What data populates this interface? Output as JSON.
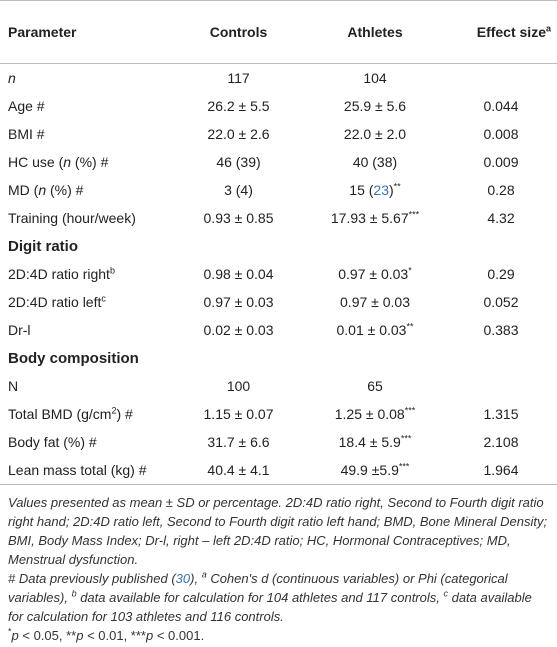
{
  "table": {
    "header": [
      "Parameter",
      "Controls",
      "Athletes",
      [
        "Effect size",
        "a"
      ]
    ],
    "rows": [
      [
        [
          "n"
        ],
        "117",
        "104"
      ],
      [
        "Age #",
        "26.2 ± 5.5",
        "25.9 ± 5.6",
        "0.044"
      ],
      [
        "BMI #",
        "22.0 ± 2.6",
        "22.0 ± 2.0",
        "0.008"
      ],
      [
        [
          "HC use (",
          "n",
          " (%) #"
        ],
        "46 (39)",
        "40 (38)",
        "0.009"
      ],
      [
        [
          "MD (",
          "n",
          " (%) #"
        ],
        "3 (4)",
        [
          "15 (",
          "23",
          ")",
          "**"
        ],
        "0.28"
      ],
      [
        "Training (hour/week)",
        "0.93 ± 0.85",
        [
          "17.93 ± 5.67",
          "***"
        ],
        "4.32"
      ]
    ],
    "sections": [
      {
        "title": "Digit ratio",
        "rows": [
          [
            [
              "2D:4D ratio right",
              "b"
            ],
            "0.98 ± 0.04",
            [
              "0.97 ± 0.03",
              "*"
            ],
            "0.29"
          ],
          [
            [
              "2D:4D ratio left",
              "c"
            ],
            "0.97 ± 0.03",
            "0.97 ± 0.03",
            "0.052"
          ],
          [
            "Dr-l",
            "0.02 ± 0.03",
            [
              "0.01 ± 0.03",
              "**"
            ],
            "0.383"
          ]
        ]
      },
      {
        "title": "Body composition",
        "rows": [
          [
            "N",
            "100",
            "65"
          ],
          [
            [
              "Total BMD (g/cm",
              "2",
              ") #"
            ],
            "1.15 ± 0.07",
            [
              "1.25 ± 0.08",
              "***"
            ],
            "1.315"
          ],
          [
            "Body fat (%) #",
            "31.7 ± 6.6",
            [
              "18.4 ± 5.9",
              "***"
            ],
            "2.108"
          ],
          [
            "Lean mass total (kg) #",
            "40.4 ± 4.1",
            [
              "49.9 ±5.9",
              "***"
            ],
            "1.964"
          ]
        ]
      }
    ]
  },
  "footnotes": [
    "Values presented as mean ± SD or percentage. 2D:4D ratio right, Second to Fourth digit ratio right hand; 2D:4D ratio left, Second to Fourth digit ratio left hand; BMD, Bone Mineral Density; BMI, Body Mass Index; Dr-l, right – left 2D:4D ratio; HC, Hormonal Contraceptives; MD, Menstrual dysfunction.",
    [
      "# Data previously published (",
      "30",
      "), ",
      "a",
      " Cohen's d (continuous variables) or Phi (categorical variables), ",
      "b",
      " data available for calculation for 104 athletes and 117 controls, ",
      "c",
      " data available for calculation for 103 athletes and 116 controls."
    ],
    [
      "*",
      "p",
      " < 0.05, **",
      "p",
      " < 0.01, ***",
      "p",
      " < 0.001."
    ]
  ]
}
